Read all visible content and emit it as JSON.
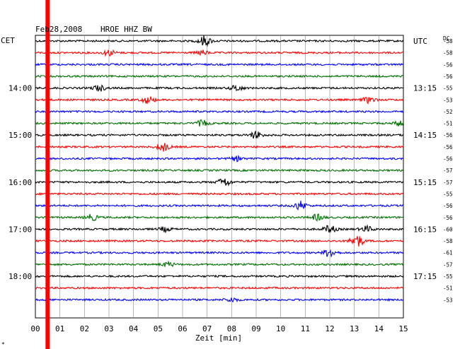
{
  "chart_data": {
    "type": "line",
    "title": "Feb28,2008",
    "station": "HROE HHZ BW",
    "left_zone": "CET",
    "right_zone": "UTC",
    "dc_label": "DC",
    "xlabel": "Zeit [min]",
    "xlim": [
      0,
      15
    ],
    "x_ticks": [
      "00",
      "01",
      "02",
      "03",
      "04",
      "05",
      "06",
      "07",
      "08",
      "09",
      "10",
      "11",
      "12",
      "13",
      "14",
      "15"
    ],
    "grid": true,
    "left_time_labels": [
      {
        "trace": 4,
        "text": "14:00"
      },
      {
        "trace": 8,
        "text": "15:00"
      },
      {
        "trace": 12,
        "text": "16:00"
      },
      {
        "trace": 16,
        "text": "17:00"
      },
      {
        "trace": 20,
        "text": "18:00"
      }
    ],
    "right_time_labels": [
      {
        "trace": 0,
        "text": "UTC"
      },
      {
        "trace": 4,
        "text": "13:15"
      },
      {
        "trace": 8,
        "text": "14:15"
      },
      {
        "trace": 12,
        "text": "15:15"
      },
      {
        "trace": 16,
        "text": "16:15"
      },
      {
        "trace": 20,
        "text": "17:15"
      }
    ],
    "trace_colors": [
      "#000000",
      "#ff0000",
      "#0000ff",
      "#007000"
    ],
    "dc_offsets": [
      "-58",
      "-58",
      "-56",
      "-56",
      "-55",
      "-53",
      "-52",
      "-51",
      "-56",
      "-56",
      "-56",
      "-57",
      "-57",
      "-55",
      "-56",
      "-56",
      "-60",
      "-58",
      "-61",
      "-57",
      "-55",
      "-51",
      "-53"
    ],
    "events": [
      {
        "trace": 0,
        "minute": 6.9,
        "amplitude": 7
      },
      {
        "trace": 1,
        "minute": 3.0,
        "amplitude": 4
      },
      {
        "trace": 1,
        "minute": 6.8,
        "amplitude": 3
      },
      {
        "trace": 4,
        "minute": 2.6,
        "amplitude": 4
      },
      {
        "trace": 4,
        "minute": 8.2,
        "amplitude": 4
      },
      {
        "trace": 5,
        "minute": 4.6,
        "amplitude": 5
      },
      {
        "trace": 5,
        "minute": 13.6,
        "amplitude": 4
      },
      {
        "trace": 7,
        "minute": 6.8,
        "amplitude": 4
      },
      {
        "trace": 7,
        "minute": 14.9,
        "amplitude": 4
      },
      {
        "trace": 8,
        "minute": 9.0,
        "amplitude": 5
      },
      {
        "trace": 9,
        "minute": 5.2,
        "amplitude": 6
      },
      {
        "trace": 10,
        "minute": 8.2,
        "amplitude": 3
      },
      {
        "trace": 12,
        "minute": 7.7,
        "amplitude": 6
      },
      {
        "trace": 14,
        "minute": 10.8,
        "amplitude": 6
      },
      {
        "trace": 15,
        "minute": 2.3,
        "amplitude": 4
      },
      {
        "trace": 15,
        "minute": 11.5,
        "amplitude": 4
      },
      {
        "trace": 16,
        "minute": 5.3,
        "amplitude": 3
      },
      {
        "trace": 16,
        "minute": 12.0,
        "amplitude": 5
      },
      {
        "trace": 16,
        "minute": 13.5,
        "amplitude": 4
      },
      {
        "trace": 17,
        "minute": 13.1,
        "amplitude": 9
      },
      {
        "trace": 18,
        "minute": 12.0,
        "amplitude": 6
      },
      {
        "trace": 19,
        "minute": 5.4,
        "amplitude": 3
      },
      {
        "trace": 22,
        "minute": 8.0,
        "amplitude": 3
      }
    ],
    "marker": {
      "minute": 0.5,
      "color": "#ff0000"
    }
  }
}
